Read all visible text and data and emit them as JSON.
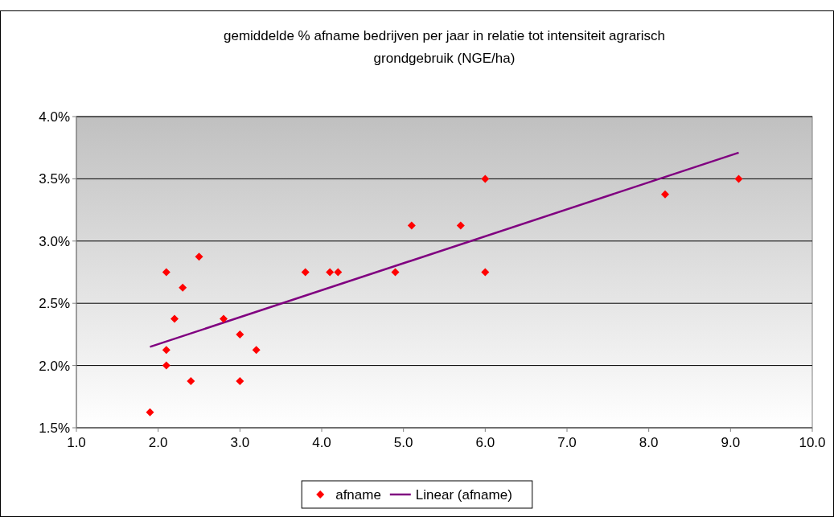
{
  "chart_data": {
    "type": "scatter",
    "title": "gemiddelde % afname bedrijven per jaar in relatie tot intensiteit agrarisch grondgebruik (NGE/ha)",
    "xlim": [
      1,
      10
    ],
    "xticks": [
      {
        "value": 1,
        "label": "1.0"
      },
      {
        "value": 2,
        "label": "2.0"
      },
      {
        "value": 3,
        "label": "3.0"
      },
      {
        "value": 4,
        "label": "4.0"
      },
      {
        "value": 5,
        "label": "5.0"
      },
      {
        "value": 6,
        "label": "6.0"
      },
      {
        "value": 7,
        "label": "7.0"
      },
      {
        "value": 8,
        "label": "8.0"
      },
      {
        "value": 9,
        "label": "9.0"
      },
      {
        "value": 10,
        "label": "10.0"
      }
    ],
    "ylim": [
      1.5,
      4
    ],
    "yticks": [
      {
        "value": 1.5,
        "label": "1.5%"
      },
      {
        "value": 2,
        "label": "2.0%"
      },
      {
        "value": 2.5,
        "label": "2.5%"
      },
      {
        "value": 3,
        "label": "3.0%"
      },
      {
        "value": 3.5,
        "label": "3.5%"
      },
      {
        "value": 4,
        "label": "4.0%"
      }
    ],
    "grid": "y",
    "legend": "bottom",
    "series": [
      {
        "name": "afname",
        "marker": "diamond",
        "color": "#ff0000",
        "x": [
          1.9,
          2.1,
          2.1,
          2.1,
          2.2,
          2.3,
          2.4,
          2.5,
          2.8,
          3.0,
          3.0,
          3.2,
          3.8,
          4.1,
          4.2,
          4.9,
          5.1,
          5.7,
          6.0,
          6.0,
          8.2,
          9.1
        ],
        "values": [
          1.625,
          2.75,
          2.125,
          2.0,
          2.375,
          2.625,
          1.875,
          2.875,
          2.375,
          2.25,
          1.875,
          2.125,
          2.75,
          2.75,
          2.75,
          2.75,
          3.125,
          3.125,
          3.5,
          2.75,
          3.375,
          3.5
        ]
      },
      {
        "name": "Linear (afname)",
        "type": "line",
        "color": "#800080",
        "x": [
          1.9,
          9.1
        ],
        "values": [
          2.15,
          3.71
        ]
      }
    ]
  }
}
